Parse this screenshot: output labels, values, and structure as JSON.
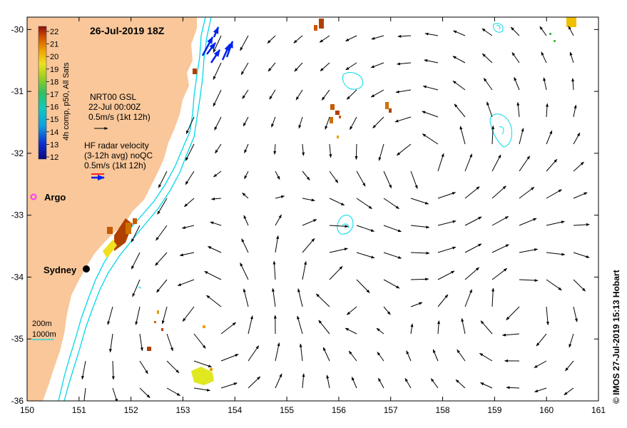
{
  "map": {
    "title": "26-Jul-2019 18Z",
    "lon_ticks": [
      "150",
      "151",
      "152",
      "153",
      "154",
      "155",
      "156",
      "157",
      "158",
      "159",
      "160",
      "161"
    ],
    "lat_ticks": [
      "-30",
      "-31",
      "-32",
      "-33",
      "-34",
      "-35",
      "-36"
    ],
    "lon_range": [
      150,
      161
    ],
    "lat_range": [
      -36,
      -29.8
    ],
    "colorbar": {
      "label": "4h comp, p50, All Sats",
      "ticks": [
        "22",
        "21",
        "20",
        "19",
        "18",
        "17",
        "16",
        "15",
        "14",
        "13",
        "12"
      ],
      "range_degC": [
        12,
        22
      ]
    },
    "legend_gsl": {
      "line1": "NRT00 GSL",
      "line2": "22-Jul 00:00Z",
      "line3": "0.5m/s (1kt 12h)"
    },
    "legend_hf": {
      "line1": "HF radar velocity",
      "line2": "(3-12h avg) noQC",
      "line3": "0.5m/s (1kt 12h)"
    },
    "argo_label": "Argo",
    "city_label": "Sydney",
    "isobaths": [
      "200m",
      "1000m"
    ],
    "credit": "© IMOS 27-Jul-2019 15:13 Hobart",
    "colors": {
      "land": "#f9c79a",
      "isobath": "#00d8e8",
      "argo": "#ff33ff",
      "hf_radar": "#0022ee"
    }
  }
}
